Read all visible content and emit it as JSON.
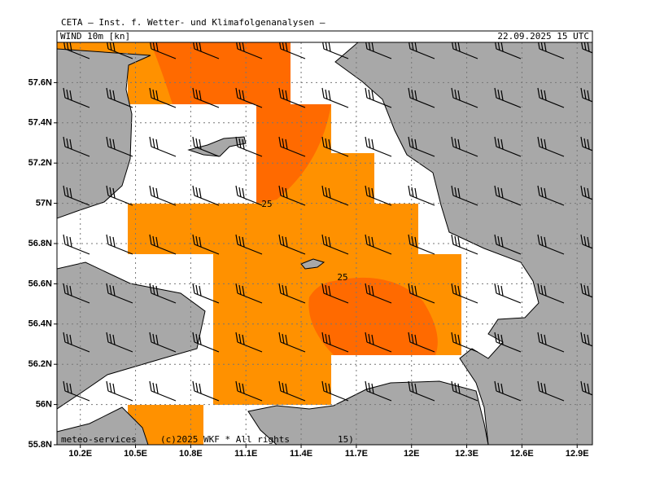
{
  "header": {
    "title": "CETA — Inst. f. Wetter- und Klimafolgenanalysen —",
    "field": "WIND 10m [kn]",
    "valid_time": "22.09.2025 15 UTC"
  },
  "map": {
    "lon_range": [
      10.073,
      12.983
    ],
    "lat_range": [
      55.8,
      57.8
    ],
    "lon_ticks": [
      {
        "value": 10.2,
        "label": "10.2E"
      },
      {
        "value": 10.5,
        "label": "10.5E"
      },
      {
        "value": 10.8,
        "label": "10.8E"
      },
      {
        "value": 11.1,
        "label": "11.1E"
      },
      {
        "value": 11.4,
        "label": "11.4E"
      },
      {
        "value": 11.7,
        "label": "11.7E"
      },
      {
        "value": 12,
        "label": "12E"
      },
      {
        "value": 12.3,
        "label": "12.3E"
      },
      {
        "value": 12.6,
        "label": "12.6E"
      },
      {
        "value": 12.9,
        "label": "12.9E"
      }
    ],
    "lat_ticks": [
      {
        "value": 55.8,
        "label": "55.8N"
      },
      {
        "value": 56,
        "label": "56N"
      },
      {
        "value": 56.2,
        "label": "56.2N"
      },
      {
        "value": 56.4,
        "label": "56.4N"
      },
      {
        "value": 56.6,
        "label": "56.6N"
      },
      {
        "value": 56.8,
        "label": "56.8N"
      },
      {
        "value": 57,
        "label": "57N"
      },
      {
        "value": 57.2,
        "label": "57.2N"
      },
      {
        "value": 57.4,
        "label": "57.4N"
      },
      {
        "value": 57.6,
        "label": "57.6N"
      }
    ],
    "contour_labels": [
      "25",
      "25"
    ]
  },
  "footer": {
    "credit": "meteo-services",
    "copyright": "(c)2025 WKF * All rights",
    "tail": "15)"
  }
}
